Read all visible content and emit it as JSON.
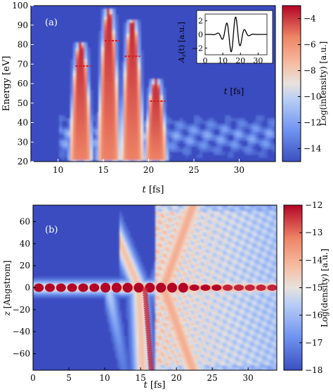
{
  "chart_data": [
    {
      "type": "heatmap",
      "panel_label": "(a)",
      "xlabel_var": "t",
      "xlabel_unit": "[fs]",
      "ylabel": "Energy [eV]",
      "xlim": [
        7,
        34
      ],
      "ylim": [
        20,
        100
      ],
      "xticks": [
        10,
        15,
        20,
        25,
        30
      ],
      "yticks": [
        20,
        30,
        40,
        50,
        60,
        70,
        80,
        90,
        100
      ],
      "colorbar": {
        "label": "Log(intensity) [a.u.]",
        "range": [
          -15,
          -3
        ],
        "ticks": [
          -4,
          -6,
          -8,
          -10,
          -12,
          -14
        ]
      },
      "features": [
        {
          "center_t": 12.5,
          "peak_energy": 80
        },
        {
          "center_t": 15.6,
          "peak_energy": 97
        },
        {
          "center_t": 18.2,
          "peak_energy": 92
        },
        {
          "center_t": 20.8,
          "peak_energy": 61
        }
      ],
      "markers": [
        {
          "t": 12.8,
          "energy": 69
        },
        {
          "t": 16.0,
          "energy": 82
        },
        {
          "t": 18.2,
          "energy": 74
        },
        {
          "t": 21.0,
          "energy": 51
        }
      ],
      "inset": {
        "type": "line",
        "xlabel_var": "t",
        "xlabel_unit": "[fs]",
        "ylabel_var": "A",
        "ylabel_sub": "z",
        "ylabel_rest": "(t) [a.u.]",
        "xlim": [
          0,
          35
        ],
        "ylim": [
          -3,
          3
        ],
        "xticks": [
          0,
          10,
          20,
          30
        ],
        "yticks": [
          -2,
          0,
          2
        ],
        "series": [
          {
            "envelope_center": 16,
            "envelope_width": 5.5,
            "period": 5.2,
            "amplitude": 2.7
          }
        ]
      }
    },
    {
      "type": "heatmap",
      "panel_label": "(b)",
      "xlabel_var": "t",
      "xlabel_unit": "[fs]",
      "ylabel_var": "z",
      "ylabel_rest": "[Angstrom]",
      "xlim": [
        0,
        34
      ],
      "ylim": [
        -75,
        75
      ],
      "xticks": [
        0,
        5,
        10,
        15,
        20,
        25,
        30
      ],
      "yticks": [
        60,
        40,
        20,
        0,
        -20,
        -40,
        -60
      ],
      "colorbar": {
        "label": "Log(density) [a.u.]",
        "range": [
          -18,
          -12
        ],
        "ticks": [
          -12,
          -13,
          -14,
          -15,
          -16,
          -17,
          -18
        ]
      }
    }
  ]
}
